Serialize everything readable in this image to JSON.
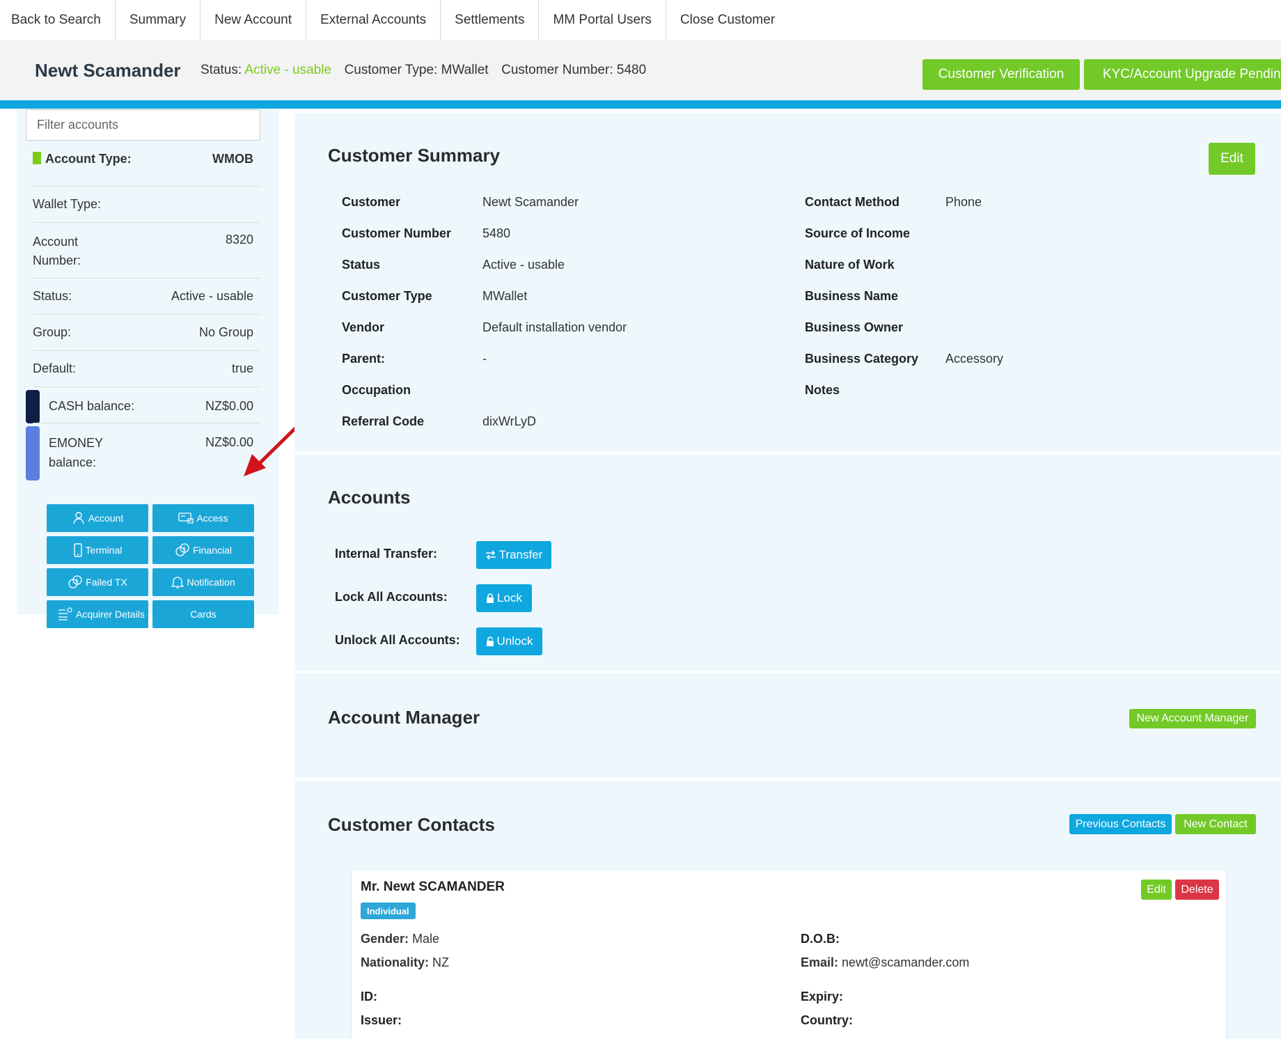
{
  "topnav": {
    "items": [
      "Back to Search",
      "Summary",
      "New Account",
      "External Accounts",
      "Settlements",
      "MM Portal Users",
      "Close Customer"
    ]
  },
  "header": {
    "name": "Newt Scamander",
    "status_label": "Status:",
    "status_value": "Active - usable",
    "type_label": "Customer Type:",
    "type_value": "MWallet",
    "number_label": "Customer Number:",
    "number_value": "5480",
    "btn_verification": "Customer Verification",
    "btn_kyc": "KYC/Account Upgrade Pending"
  },
  "sidebar": {
    "filter_placeholder": "Filter accounts",
    "account_type_label": "Account Type:",
    "account_type_value": "WMOB",
    "wallet_type_label": "Wallet Type:",
    "account_number_label_1": "Account",
    "account_number_label_2": "Number:",
    "account_number_value": "8320",
    "status_label": "Status:",
    "status_value": "Active - usable",
    "group_label": "Group:",
    "group_value": "No Group",
    "default_label": "Default:",
    "default_value": "true",
    "cash_label": "CASH balance:",
    "cash_value": "NZ$0.00",
    "cash_color": "#101e44",
    "emoney_label_1": "EMONEY",
    "emoney_label_2": "balance:",
    "emoney_value": "NZ$0.00",
    "emoney_color": "#5b7fe0",
    "buttons": {
      "account": "Account",
      "access": "Access",
      "terminal": "Terminal",
      "financial": "Financial",
      "failed_tx": "Failed TX",
      "notification": "Notification",
      "acquirer": "Acquirer Details",
      "cards": "Cards"
    }
  },
  "summary": {
    "title": "Customer Summary",
    "edit": "Edit",
    "left": [
      {
        "k": "Customer",
        "v": "Newt Scamander"
      },
      {
        "k": "Customer Number",
        "v": "5480"
      },
      {
        "k": "Status",
        "v": "Active - usable"
      },
      {
        "k": "Customer Type",
        "v": "MWallet"
      },
      {
        "k": "Vendor",
        "v": "Default installation vendor"
      },
      {
        "k": "Parent:",
        "v": "-"
      },
      {
        "k": "Occupation",
        "v": ""
      },
      {
        "k": "Referral Code",
        "v": "dixWrLyD"
      }
    ],
    "right": [
      {
        "k": "Contact Method",
        "v": "Phone"
      },
      {
        "k": "Source of Income",
        "v": ""
      },
      {
        "k": "Nature of Work",
        "v": ""
      },
      {
        "k": "Business Name",
        "v": ""
      },
      {
        "k": "Business Owner",
        "v": ""
      },
      {
        "k": "Business Category",
        "v": "Accessory"
      },
      {
        "k": "Notes",
        "v": ""
      }
    ]
  },
  "accounts": {
    "title": "Accounts",
    "internal_transfer_label": "Internal Transfer:",
    "transfer_btn": "Transfer",
    "lock_label": "Lock All Accounts:",
    "lock_btn": "Lock",
    "unlock_label": "Unlock All Accounts:",
    "unlock_btn": "Unlock"
  },
  "account_manager": {
    "title": "Account Manager",
    "new_btn": "New Account Manager"
  },
  "contacts": {
    "title": "Customer Contacts",
    "previous_btn": "Previous Contacts",
    "new_btn": "New Contact",
    "card": {
      "name": "Mr. Newt SCAMANDER",
      "badge": "Individual",
      "edit": "Edit",
      "delete": "Delete",
      "gender_label": "Gender:",
      "gender_value": "Male",
      "nationality_label": "Nationality:",
      "nationality_value": "NZ",
      "id_label": "ID:",
      "issuer_label": "Issuer:",
      "dob_label": "D.O.B:",
      "email_label": "Email:",
      "email_value": "newt@scamander.com",
      "expiry_label": "Expiry:",
      "country_label": "Country:"
    }
  },
  "colors": {
    "accent_blue": "#0ea7df",
    "accent_green": "#72c928",
    "danger_red": "#dc3545",
    "annotation_arrow": "#d0141c"
  }
}
